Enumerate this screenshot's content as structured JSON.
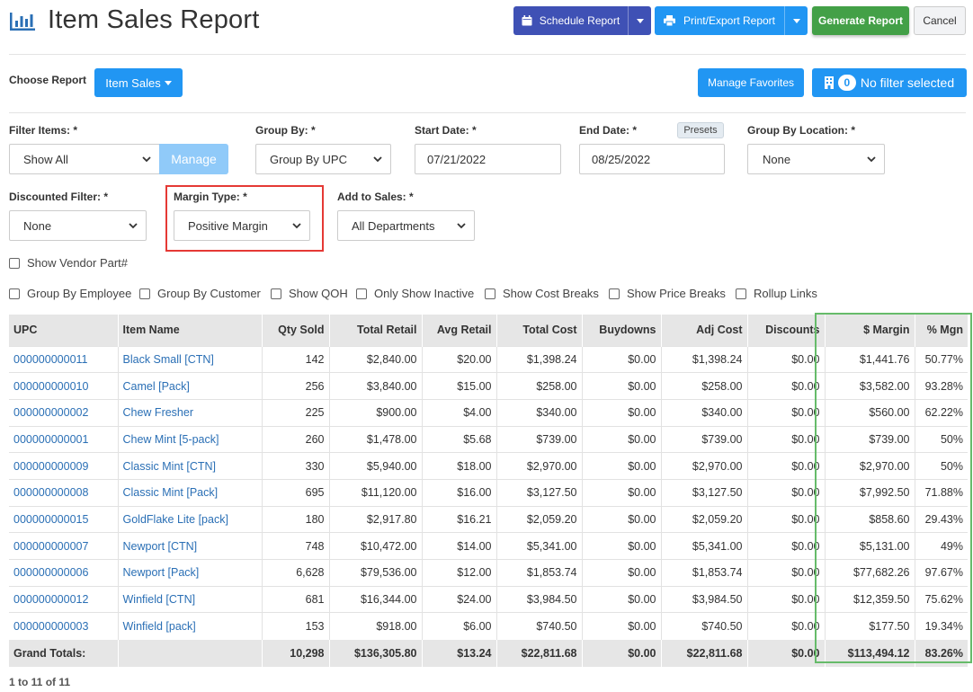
{
  "header": {
    "title": "Item Sales Report",
    "schedule_label": "Schedule Report",
    "print_label": "Print/Export Report",
    "generate_label": "Generate Report",
    "cancel_label": "Cancel"
  },
  "toolbar": {
    "choose_report_label": "Choose Report",
    "report_type": "Item Sales",
    "favorites_label": "Manage Favorites",
    "filter_count": "0",
    "filter_label": "No filter selected"
  },
  "filters": {
    "filter_items": {
      "label": "Filter Items: *",
      "value": "Show All",
      "manage_label": "Manage"
    },
    "group_by": {
      "label": "Group By: *",
      "value": "Group By UPC"
    },
    "start_date": {
      "label": "Start Date: *",
      "value": "07/21/2022"
    },
    "end_date": {
      "label": "End Date: *",
      "value": "08/25/2022",
      "presets_label": "Presets"
    },
    "group_by_location": {
      "label": "Group By Location: *",
      "value": "None"
    },
    "discounted": {
      "label": "Discounted Filter: *",
      "value": "None"
    },
    "margin_type": {
      "label": "Margin Type: *",
      "value": "Positive Margin"
    },
    "add_to_sales": {
      "label": "Add to Sales: *",
      "value": "All Departments"
    }
  },
  "checkboxes": {
    "vendor_part": "Show Vendor Part#",
    "group_employee": "Group By Employee",
    "group_customer": "Group By Customer",
    "show_qoh": "Show QOH",
    "only_inactive": "Only Show Inactive",
    "cost_breaks": "Show Cost Breaks",
    "price_breaks": "Show Price Breaks",
    "rollup_links": "Rollup Links"
  },
  "table": {
    "headers": [
      "UPC",
      "Item Name",
      "Qty Sold",
      "Total Retail",
      "Avg Retail",
      "Total Cost",
      "Buydowns",
      "Adj Cost",
      "Discounts",
      "$ Margin",
      "% Mgn"
    ],
    "rows": [
      [
        "000000000011",
        "Black Small [CTN]",
        "142",
        "$2,840.00",
        "$20.00",
        "$1,398.24",
        "$0.00",
        "$1,398.24",
        "$0.00",
        "$1,441.76",
        "50.77%"
      ],
      [
        "000000000010",
        "Camel [Pack]",
        "256",
        "$3,840.00",
        "$15.00",
        "$258.00",
        "$0.00",
        "$258.00",
        "$0.00",
        "$3,582.00",
        "93.28%"
      ],
      [
        "000000000002",
        "Chew Fresher",
        "225",
        "$900.00",
        "$4.00",
        "$340.00",
        "$0.00",
        "$340.00",
        "$0.00",
        "$560.00",
        "62.22%"
      ],
      [
        "000000000001",
        "Chew Mint [5-pack]",
        "260",
        "$1,478.00",
        "$5.68",
        "$739.00",
        "$0.00",
        "$739.00",
        "$0.00",
        "$739.00",
        "50%"
      ],
      [
        "000000000009",
        "Classic Mint [CTN]",
        "330",
        "$5,940.00",
        "$18.00",
        "$2,970.00",
        "$0.00",
        "$2,970.00",
        "$0.00",
        "$2,970.00",
        "50%"
      ],
      [
        "000000000008",
        "Classic Mint [Pack]",
        "695",
        "$11,120.00",
        "$16.00",
        "$3,127.50",
        "$0.00",
        "$3,127.50",
        "$0.00",
        "$7,992.50",
        "71.88%"
      ],
      [
        "000000000015",
        "GoldFlake Lite [pack]",
        "180",
        "$2,917.80",
        "$16.21",
        "$2,059.20",
        "$0.00",
        "$2,059.20",
        "$0.00",
        "$858.60",
        "29.43%"
      ],
      [
        "000000000007",
        "Newport [CTN]",
        "748",
        "$10,472.00",
        "$14.00",
        "$5,341.00",
        "$0.00",
        "$5,341.00",
        "$0.00",
        "$5,131.00",
        "49%"
      ],
      [
        "000000000006",
        "Newport [Pack]",
        "6,628",
        "$79,536.00",
        "$12.00",
        "$1,853.74",
        "$0.00",
        "$1,853.74",
        "$0.00",
        "$77,682.26",
        "97.67%"
      ],
      [
        "000000000012",
        "Winfield [CTN]",
        "681",
        "$16,344.00",
        "$24.00",
        "$3,984.50",
        "$0.00",
        "$3,984.50",
        "$0.00",
        "$12,359.50",
        "75.62%"
      ],
      [
        "000000000003",
        "Winfield [pack]",
        "153",
        "$918.00",
        "$6.00",
        "$740.50",
        "$0.00",
        "$740.50",
        "$0.00",
        "$177.50",
        "19.34%"
      ]
    ],
    "totals": [
      "Grand Totals:",
      "",
      "10,298",
      "$136,305.80",
      "$13.24",
      "$22,811.68",
      "$0.00",
      "$22,811.68",
      "$0.00",
      "$113,494.12",
      "83.26%"
    ]
  },
  "pager": "1 to 11 of 11",
  "colors": {
    "schedule": "#3f51b5",
    "primary": "#2196f3",
    "generate": "#43a047",
    "highlight_red": "#e53935",
    "highlight_green": "#66bb6a",
    "link": "#2a6fb5"
  }
}
